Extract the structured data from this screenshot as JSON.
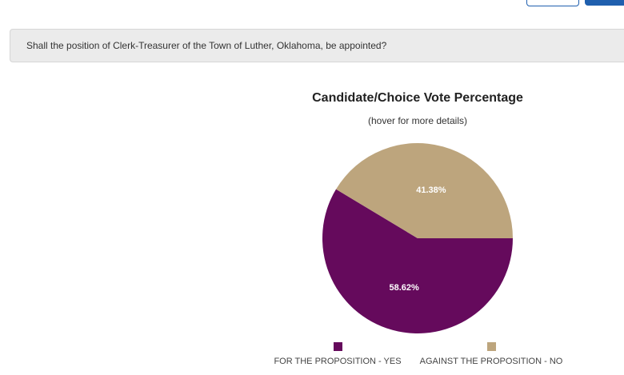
{
  "page": {
    "question": "Shall the position of Clerk-Treasurer of the Town of Luther, Oklahoma, be appointed?"
  },
  "chart_data": {
    "type": "pie",
    "title": "Candidate/Choice Vote Percentage",
    "subtitle": "(hover for more details)",
    "slices": [
      {
        "name": "FOR THE PROPOSITION - YES",
        "value": 58.62,
        "label": "58.62%",
        "color": "#650a5c"
      },
      {
        "name": "AGAINST THE PROPOSITION - NO",
        "value": 41.38,
        "label": "41.38%",
        "color": "#bda57d"
      }
    ],
    "legend_position": "bottom"
  }
}
